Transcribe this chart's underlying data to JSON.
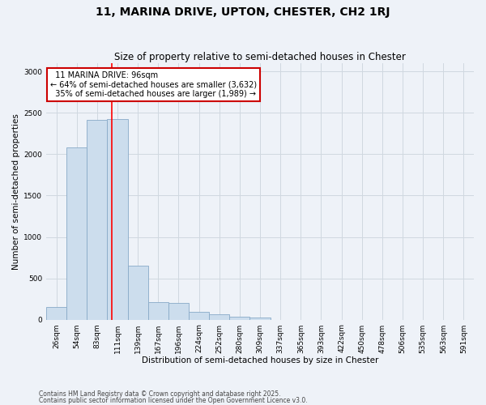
{
  "title": "11, MARINA DRIVE, UPTON, CHESTER, CH2 1RJ",
  "subtitle": "Size of property relative to semi-detached houses in Chester",
  "xlabel": "Distribution of semi-detached houses by size in Chester",
  "ylabel": "Number of semi-detached properties",
  "categories": [
    "26sqm",
    "54sqm",
    "83sqm",
    "111sqm",
    "139sqm",
    "167sqm",
    "196sqm",
    "224sqm",
    "252sqm",
    "280sqm",
    "309sqm",
    "337sqm",
    "365sqm",
    "393sqm",
    "422sqm",
    "450sqm",
    "478sqm",
    "506sqm",
    "535sqm",
    "563sqm",
    "591sqm"
  ],
  "values": [
    155,
    2080,
    2420,
    2430,
    650,
    210,
    200,
    95,
    60,
    40,
    28,
    0,
    0,
    0,
    0,
    0,
    0,
    0,
    0,
    0,
    0
  ],
  "bar_color": "#ccdded",
  "bar_edge_color": "#88aac8",
  "bar_edge_width": 0.6,
  "red_line_x": 2.72,
  "property_label": "11 MARINA DRIVE: 96sqm",
  "pct_smaller": "64%",
  "pct_smaller_count": "3,632",
  "pct_larger": "35%",
  "pct_larger_count": "1,989",
  "ylim": [
    0,
    3100
  ],
  "yticks": [
    0,
    500,
    1000,
    1500,
    2000,
    2500,
    3000
  ],
  "annotation_box_color": "#ffffff",
  "annotation_box_edge": "#cc0000",
  "grid_color": "#d0d8e0",
  "background_color": "#eef2f8",
  "footer_line1": "Contains HM Land Registry data © Crown copyright and database right 2025.",
  "footer_line2": "Contains public sector information licensed under the Open Government Licence v3.0."
}
